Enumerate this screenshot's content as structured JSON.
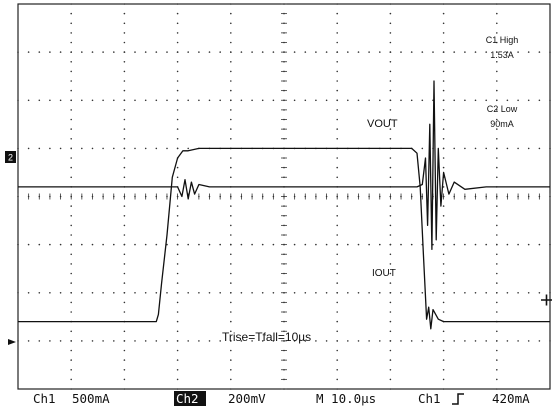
{
  "chart_data": {
    "type": "line",
    "title": "",
    "xlabel": "",
    "ylabel": "",
    "x_unit": "µs",
    "xlim": [
      -50,
      50
    ],
    "ylim": [
      -4,
      4
    ],
    "grid": true,
    "series": [
      {
        "name": "VOUT",
        "channel": "Ch2",
        "x": [
          -50,
          -20,
          -19.2,
          -18.6,
          -18.0,
          -17.4,
          -16.8,
          -16.0,
          -14.0,
          0,
          20,
          25,
          26.0,
          26.6,
          27.0,
          27.4,
          27.8,
          28.2,
          28.6,
          29.0,
          29.5,
          30.0,
          31.0,
          32.0,
          34.0,
          38.0,
          50
        ],
        "values": [
          0.2,
          0.2,
          0.0,
          0.35,
          -0.05,
          0.3,
          0.05,
          0.25,
          0.2,
          0.2,
          0.2,
          0.2,
          0.25,
          0.8,
          -0.6,
          1.5,
          -1.1,
          2.4,
          -0.9,
          1.0,
          -0.2,
          0.5,
          0.05,
          0.3,
          0.15,
          0.2,
          0.2
        ]
      },
      {
        "name": "IOUT",
        "channel": "Ch1",
        "x": [
          -50,
          -24,
          -23.6,
          -23.0,
          -22.0,
          -21.0,
          -20.0,
          -19.0,
          -18.0,
          -16.0,
          0,
          20,
          24.0,
          25.0,
          25.6,
          26.2,
          26.8,
          27.2,
          27.6,
          28.0,
          29.0,
          30.0,
          50
        ],
        "values": [
          -2.6,
          -2.6,
          -2.45,
          -1.8,
          -0.8,
          0.4,
          0.8,
          0.95,
          0.95,
          1.0,
          1.0,
          1.0,
          1.0,
          0.9,
          0.2,
          -1.2,
          -2.55,
          -2.3,
          -2.75,
          -2.35,
          -2.55,
          -2.6,
          -2.6
        ]
      }
    ],
    "annotations": {
      "vout": "VOUT",
      "iout": "IOUT",
      "c1_label": "C1 High",
      "c1_value": "1.53A",
      "c2_label": "C2 Low",
      "c2_value": "90mA",
      "rise_fall": "Trise=Tfall=10µs"
    },
    "status": {
      "ch1": "Ch1",
      "ch1_scale": "500mA",
      "ch2": "Ch2",
      "ch2_scale": "200mV",
      "timebase": "M 10.0µs",
      "trig_source": "Ch1",
      "trig_level": "420mA"
    },
    "markers": {
      "ch2_ref": "2"
    },
    "colors": {
      "trace": "#111111",
      "grid": "#333333",
      "background": "#ffffff"
    }
  }
}
